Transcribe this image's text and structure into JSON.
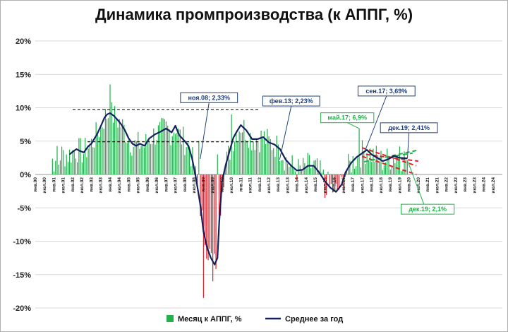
{
  "chart_data": {
    "type": "bar",
    "title": "Динамика промпроизводства (к АППГ, %)",
    "ylim": [
      -20,
      20
    ],
    "yticks": [
      "20%",
      "15%",
      "10%",
      "5%",
      "0%",
      "-5%",
      "-10%",
      "-15%",
      "-20%"
    ],
    "ytick_values": [
      20,
      15,
      10,
      5,
      0,
      -5,
      -10,
      -15,
      -20
    ],
    "x_tick_labels": [
      "янв.00",
      "июл.00",
      "янв.01",
      "июл.01",
      "янв.02",
      "июл.02",
      "янв.03",
      "июл.03",
      "янв.04",
      "июл.04",
      "янв.05",
      "июл.05",
      "янв.06",
      "июл.06",
      "янв.07",
      "июл.07",
      "янв.08",
      "июл.08",
      "янв.09",
      "июл.09",
      "янв.10",
      "июл.10",
      "янв.11",
      "июл.11",
      "янв.12",
      "июл.12",
      "янв.13",
      "июл.13",
      "янв.14",
      "июл.14",
      "янв.15",
      "июл.15",
      "янв.16",
      "июл.16",
      "янв.17",
      "июл.17",
      "янв.18",
      "июл.18",
      "янв.19",
      "июл.19",
      "янв.20",
      "июл.20",
      "янв.21",
      "июл.21",
      "янв.22",
      "июл.22",
      "янв.23",
      "июл.23",
      "янв.24",
      "июл.24"
    ],
    "grid": true,
    "legend_position": "bottom",
    "series": [
      {
        "name": "Месяц к АППГ, %",
        "kind": "bar",
        "color_positive": "#21b24b",
        "color_negative": "#e0202a",
        "x": [
          2001.0,
          2004.0,
          2008.75,
          2009.0,
          2009.5,
          2009.75,
          2010.5,
          2013.0,
          2015.5,
          2017.33,
          2019.5,
          2019.92
        ],
        "values": [
          3.0,
          13.5,
          5.0,
          -18.5,
          -16.0,
          3.0,
          9.0,
          4.5,
          -3.5,
          6.9,
          4.2,
          2.1
        ],
        "keypoints_only": true
      },
      {
        "name": "Среднее за год",
        "kind": "line",
        "color": "#13215e",
        "x": [
          2001.83,
          2002.0,
          2002.2,
          2002.4,
          2002.6,
          2002.83,
          2003.0,
          2003.3,
          2003.5,
          2003.7,
          2003.85,
          2004.0,
          2004.2,
          2004.4,
          2004.6,
          2004.8,
          2005.0,
          2005.2,
          2005.4,
          2005.6,
          2005.85,
          2006.1,
          2006.4,
          2006.7,
          2007.0,
          2007.3,
          2007.5,
          2007.7,
          2008.0,
          2008.2,
          2008.4,
          2008.6,
          2008.83,
          2009.0,
          2009.2,
          2009.4,
          2009.6,
          2009.75,
          2009.85,
          2010.0,
          2010.2,
          2010.4,
          2010.6,
          2010.8,
          2011.0,
          2011.3,
          2011.6,
          2011.9,
          2012.2,
          2012.5,
          2012.8,
          2013.1,
          2013.4,
          2013.7,
          2014.0,
          2014.3,
          2014.6,
          2014.9,
          2015.2,
          2015.5,
          2015.8,
          2016.1,
          2016.4,
          2016.6,
          2016.9,
          2017.2,
          2017.5,
          2017.75,
          2018.0,
          2018.3,
          2018.6,
          2018.9,
          2019.2,
          2019.5,
          2019.92
        ],
        "values": [
          3.0,
          3.4,
          3.8,
          3.5,
          3.3,
          4.2,
          4.6,
          6.0,
          7.2,
          8.5,
          9.0,
          9.2,
          8.8,
          8.2,
          7.5,
          6.6,
          5.4,
          4.6,
          4.3,
          4.6,
          4.3,
          5.4,
          6.0,
          6.4,
          6.9,
          6.3,
          7.3,
          5.9,
          5.0,
          4.3,
          2.33,
          -0.5,
          -4.5,
          -8.5,
          -11.0,
          -12.5,
          -13.5,
          -12.5,
          -7.0,
          -1.0,
          1.5,
          3.5,
          5.5,
          6.5,
          7.4,
          6.6,
          5.3,
          5.3,
          5.6,
          4.8,
          4.5,
          3.8,
          2.23,
          1.3,
          0.6,
          0.7,
          1.3,
          1.3,
          0.3,
          -1.0,
          -2.0,
          -2.6,
          -1.5,
          0.3,
          1.7,
          2.6,
          3.2,
          3.69,
          3.0,
          2.5,
          2.0,
          2.3,
          2.8,
          2.5,
          2.41
        ]
      }
    ],
    "reference_lines": [
      {
        "color": "#111111",
        "style": "dashed",
        "x0": 2002.0,
        "x1": 2012.0,
        "y0": 9.7,
        "y1": 9.7
      },
      {
        "color": "#111111",
        "style": "dashed",
        "x0": 2002.8,
        "x1": 2012.0,
        "y0": 4.9,
        "y1": 4.9
      },
      {
        "color": "#e0202a",
        "style": "dashed",
        "x0": 2017.5,
        "x1": 2020.4,
        "y0": 4.0,
        "y1": 1.3
      },
      {
        "color": "#e0202a",
        "style": "dashed",
        "x0": 2017.5,
        "x1": 2020.4,
        "y0": 2.7,
        "y1": 0.0
      },
      {
        "color": "#e0202a",
        "style": "dashed",
        "x0": 2017.7,
        "x1": 2020.5,
        "y0": 3.0,
        "y1": 2.0
      },
      {
        "color": "#21b24b",
        "style": "dashed",
        "x0": 2017.6,
        "x1": 2020.4,
        "y0": 1.9,
        "y1": 3.6
      },
      {
        "color": "#21b24b",
        "style": "dashed",
        "x0": 2019.3,
        "x1": 2020.2,
        "y0": 2.8,
        "y1": 3.2
      }
    ],
    "annotations": [
      {
        "text": "ноя.08; 2,33%",
        "color": "#1f3f7a",
        "point_x": 2008.83,
        "point_y": 2.33,
        "label_x": 2009.3,
        "label_y": 11.5
      },
      {
        "text": "фев.13; 2,23%",
        "color": "#1f3f7a",
        "point_x": 2013.08,
        "point_y": 2.23,
        "label_x": 2013.7,
        "label_y": 11.0
      },
      {
        "text": "май.17; 6,9%",
        "color": "#21b24b",
        "point_x": 2017.33,
        "point_y": 6.9,
        "label_x": 2016.7,
        "label_y": 8.5
      },
      {
        "text": "сен.17; 3,69%",
        "color": "#1f3f7a",
        "point_x": 2017.67,
        "point_y": 3.69,
        "label_x": 2018.8,
        "label_y": 12.5
      },
      {
        "text": "дек.19; 2,41%",
        "color": "#1f3f7a",
        "point_x": 2019.92,
        "point_y": 2.41,
        "label_x": 2020.0,
        "label_y": 7.0
      },
      {
        "text": "дек.19; 2,1%",
        "color": "#21b24b",
        "point_x": 2019.92,
        "point_y": 2.1,
        "label_x": 2021.0,
        "label_y": -5.2
      }
    ]
  },
  "legend": {
    "bar_label": "Месяц к АППГ, %",
    "line_label": "Среднее за год"
  }
}
